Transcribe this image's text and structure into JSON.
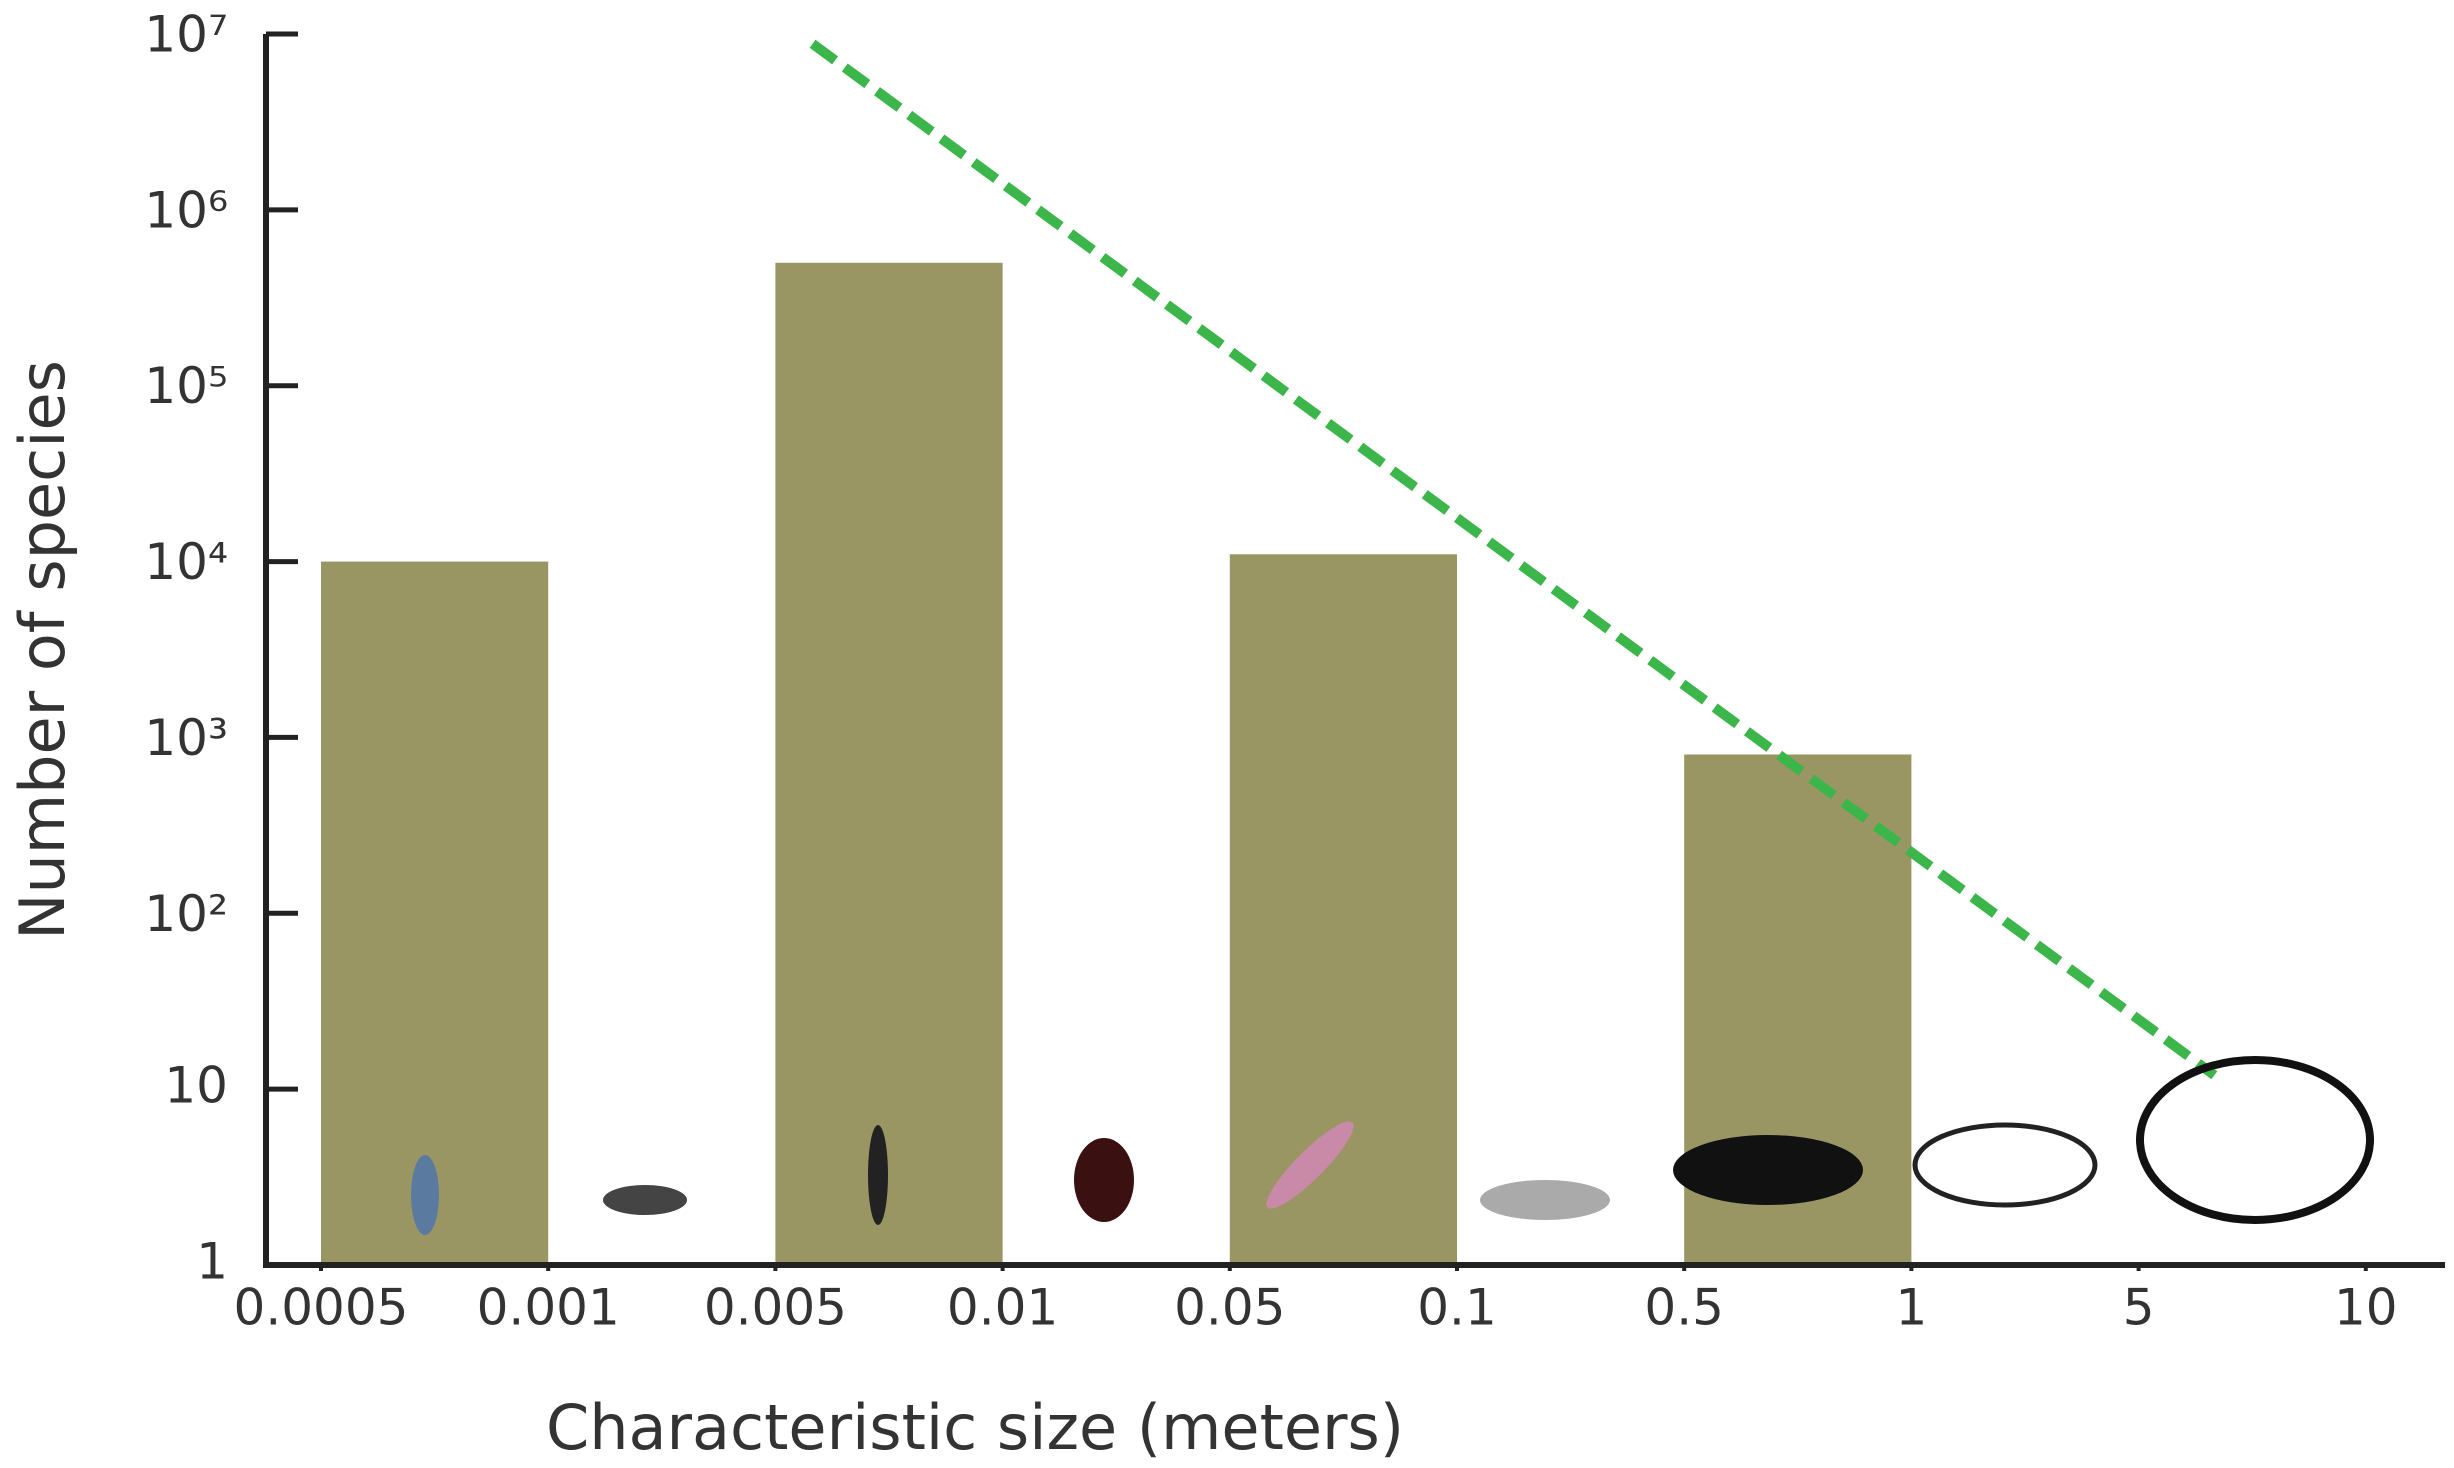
{
  "chart_data": {
    "type": "bar",
    "xlabel": "Characteristic size (meters)",
    "ylabel": "Number of species",
    "log_y": true,
    "ylim": [
      1,
      10000000
    ],
    "yticks": [
      1,
      10,
      {
        "value": 100,
        "label": "10²"
      },
      {
        "value": 1000,
        "label": "10³"
      },
      {
        "value": 10000,
        "label": "10⁴"
      },
      {
        "value": 100000,
        "label": "10⁵"
      },
      {
        "value": 1000000,
        "label": "10⁶"
      },
      {
        "value": 10000000,
        "label": "10⁷"
      }
    ],
    "xticks": [
      0.0005,
      0.001,
      0.005,
      0.01,
      0.05,
      0.1,
      0.5,
      1,
      5,
      10
    ],
    "color": "#9a9664",
    "bars": [
      {
        "x0": 0.0005,
        "x1": 0.001,
        "value": 10000
      },
      {
        "x0": 0.005,
        "x1": 0.01,
        "value": 500000
      },
      {
        "x0": 0.05,
        "x1": 0.1,
        "value": 11000
      },
      {
        "x0": 0.5,
        "x1": 1,
        "value": 800
      }
    ],
    "trend": {
      "x": [
        0.0056,
        6.3
      ],
      "values": [
        8800000,
        12
      ],
      "color": "#3cb54a",
      "dashed": true
    }
  }
}
